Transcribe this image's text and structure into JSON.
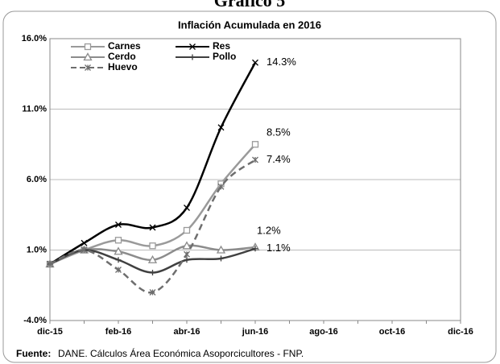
{
  "chart_data": {
    "type": "line",
    "header": "Gráfico 5",
    "title": "Inflación Acumulada en 2016",
    "categories": [
      "dic-15",
      null,
      "feb-16",
      null,
      "abr-16",
      null,
      "jun-16",
      null,
      "ago-16",
      null,
      "oct-16",
      null,
      "dic-16"
    ],
    "series": [
      {
        "name": "Carnes",
        "color": "#9a9a9a",
        "marker": "square",
        "dash": false,
        "values": [
          0,
          1.0,
          1.7,
          1.3,
          2.4,
          5.7,
          8.5,
          null,
          null,
          null,
          null,
          null,
          null
        ],
        "value_labels": [
          null,
          null,
          null,
          null,
          null,
          null,
          "8.5%",
          null,
          null,
          null,
          null,
          null,
          null
        ]
      },
      {
        "name": "Res",
        "color": "#000000",
        "marker": "x",
        "dash": false,
        "values": [
          0,
          1.5,
          2.8,
          2.6,
          4.0,
          9.7,
          14.3,
          null,
          null,
          null,
          null,
          null,
          null
        ],
        "value_labels": [
          null,
          null,
          null,
          null,
          null,
          null,
          "14.3%",
          null,
          null,
          null,
          null,
          null,
          null
        ]
      },
      {
        "name": "Cerdo",
        "color": "#8c8c8c",
        "marker": "triangle",
        "dash": false,
        "values": [
          0,
          1.0,
          0.9,
          0.3,
          1.3,
          1.0,
          1.2,
          null,
          null,
          null,
          null,
          null,
          null
        ],
        "value_labels": [
          null,
          null,
          null,
          null,
          null,
          null,
          "1.2%",
          null,
          null,
          null,
          null,
          null,
          null
        ]
      },
      {
        "name": "Pollo",
        "color": "#404040",
        "marker": "plus",
        "dash": false,
        "values": [
          0,
          1.0,
          0.3,
          -0.6,
          0.3,
          0.4,
          1.1,
          null,
          null,
          null,
          null,
          null,
          null
        ],
        "value_labels": [
          null,
          null,
          null,
          null,
          null,
          null,
          "1.1%",
          null,
          null,
          null,
          null,
          null,
          null
        ]
      },
      {
        "name": "Huevo",
        "color": "#6e6e6e",
        "marker": "star",
        "dash": true,
        "values": [
          0,
          1.0,
          -0.4,
          -2.0,
          0.7,
          5.5,
          7.4,
          null,
          null,
          null,
          null,
          null,
          null
        ],
        "value_labels": [
          null,
          null,
          null,
          null,
          null,
          null,
          "7.4%",
          null,
          null,
          null,
          null,
          null,
          null
        ]
      }
    ],
    "ylim": [
      -4,
      16
    ],
    "yticks": [
      {
        "value": -4,
        "label": "-4.0%"
      },
      {
        "value": 1,
        "label": "1.0%"
      },
      {
        "value": 6,
        "label": "6.0%"
      },
      {
        "value": 11,
        "label": "11.0%"
      },
      {
        "value": 16,
        "label": "16.0%"
      }
    ],
    "grid": true,
    "source_label": "Fuente:",
    "source": "DANE. Cálculos Área Económica  Asoporcicultores - FNP."
  }
}
